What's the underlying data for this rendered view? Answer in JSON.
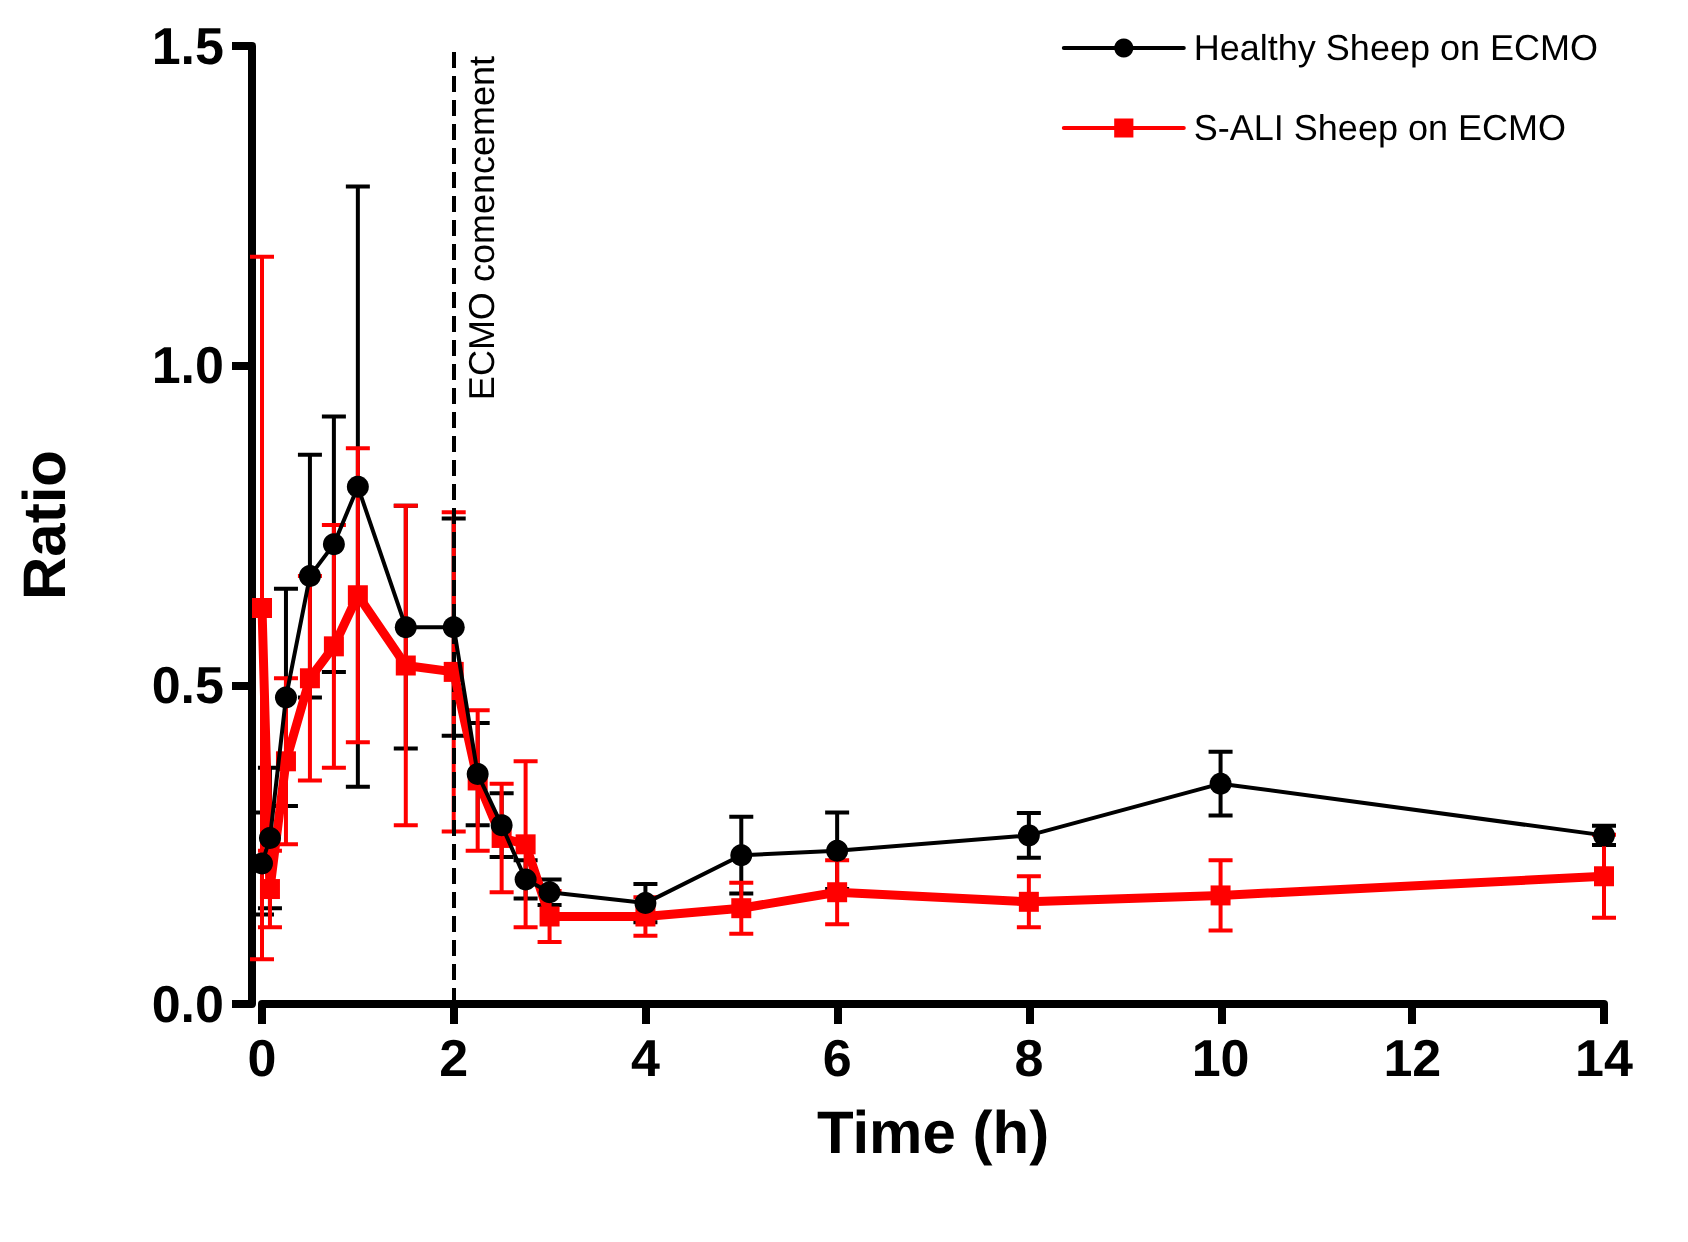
{
  "chart_data": {
    "type": "line",
    "xlabel": "Time (h)",
    "ylabel": "Ratio",
    "xlim": [
      0,
      14
    ],
    "xticks": [
      0,
      2,
      4,
      6,
      8,
      10,
      12,
      14
    ],
    "ylim": [
      0,
      1.5
    ],
    "yticks": [
      {
        "value": 0,
        "label": "0.0"
      },
      {
        "value": 0.5,
        "label": "0.5"
      },
      {
        "value": 1,
        "label": "1.0"
      },
      {
        "value": 1.5,
        "label": "1.5"
      }
    ],
    "grid": false,
    "legend": "top right",
    "line_style": "solid",
    "ref_lines": [
      {
        "axis": "x",
        "value": 2,
        "label": "ECMO comencement",
        "line_style": "dashed",
        "color": "#000000"
      }
    ],
    "series": [
      {
        "name": "Healthy Sheep on ECMO",
        "color": "#000000",
        "marker": "circle",
        "x": [
          0,
          0.083,
          0.25,
          0.5,
          0.75,
          1,
          1.5,
          2,
          2.25,
          2.5,
          2.75,
          3,
          4,
          5,
          6,
          8,
          10,
          14
        ],
        "values": [
          0.22,
          0.26,
          0.48,
          0.67,
          0.72,
          0.81,
          0.59,
          0.59,
          0.36,
          0.28,
          0.195,
          0.175,
          0.158,
          0.233,
          0.24,
          0.264,
          0.345,
          0.264
        ],
        "errors": [
          0.08,
          0.11,
          0.17,
          0.19,
          0.2,
          0.47,
          0.19,
          0.17,
          0.08,
          0.05,
          0.03,
          0.02,
          0.03,
          0.06,
          0.06,
          0.035,
          0.05,
          0.015
        ]
      },
      {
        "name": "S-ALI Sheep on ECMO",
        "color": "#ff0000",
        "marker": "square",
        "x": [
          0,
          0.083,
          0.25,
          0.5,
          0.75,
          1,
          1.5,
          2,
          2.25,
          2.5,
          2.75,
          3,
          4,
          5,
          6,
          8,
          10,
          14
        ],
        "values": [
          0.62,
          0.18,
          0.38,
          0.51,
          0.56,
          0.64,
          0.53,
          0.52,
          0.35,
          0.26,
          0.25,
          0.137,
          0.137,
          0.15,
          0.175,
          0.16,
          0.17,
          0.2
        ],
        "errors": [
          0.55,
          0.06,
          0.13,
          0.16,
          0.19,
          0.23,
          0.25,
          0.25,
          0.11,
          0.085,
          0.13,
          0.04,
          0.03,
          0.04,
          0.05,
          0.04,
          0.055,
          0.065
        ]
      }
    ]
  }
}
